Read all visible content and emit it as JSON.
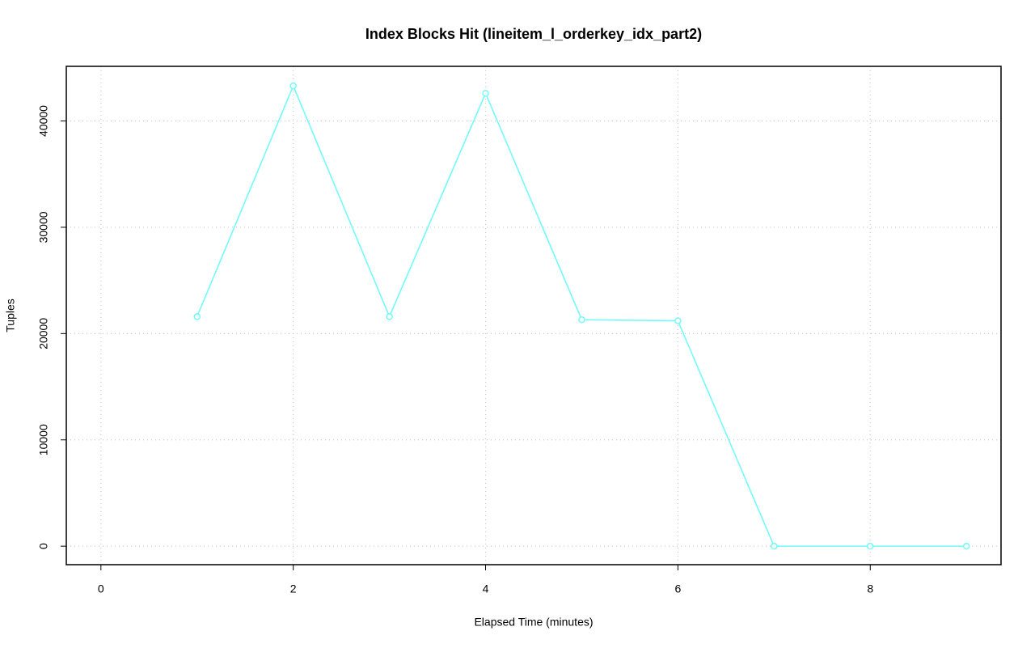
{
  "chart_data": {
    "type": "line",
    "title": "Index Blocks Hit (lineitem_l_orderkey_idx_part2)",
    "x_label": "Elapsed Time (minutes)",
    "y_label": "Tuples",
    "x": [
      1,
      2,
      3,
      4,
      5,
      6,
      7,
      8,
      9
    ],
    "series": [
      {
        "color": "#73fafa",
        "values": [
          21600,
          43300,
          21600,
          42600,
          21300,
          21200,
          0,
          0,
          0
        ]
      }
    ],
    "xlim": [
      -0.36,
      9.36
    ],
    "ylim": [
      -1740,
      45140
    ],
    "xticks": [
      0,
      2,
      4,
      6,
      8
    ],
    "yticks": [
      0,
      10000,
      20000,
      30000,
      40000
    ],
    "grid": true
  }
}
